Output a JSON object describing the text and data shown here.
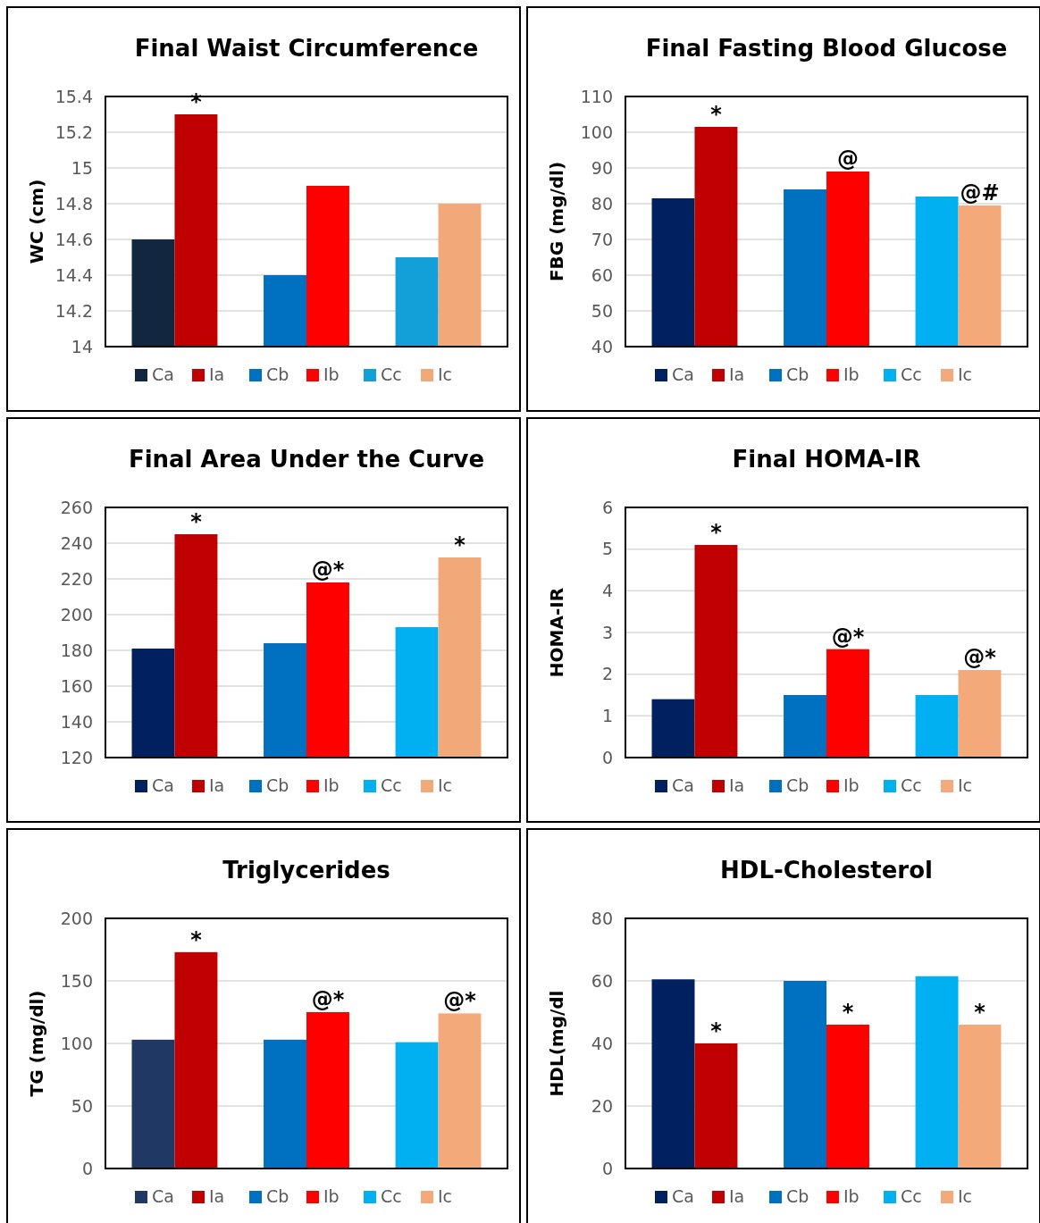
{
  "chart_data": [
    {
      "type": "bar",
      "title": "Final Waist Circumference",
      "ylabel": "WC (cm)",
      "categories": [
        null,
        null,
        null
      ],
      "ylim": [
        14,
        15.4
      ],
      "yticks": [
        14,
        14.2,
        14.4,
        14.6,
        14.8,
        15,
        15.2,
        15.4
      ],
      "grid": "y",
      "legend": "bottom",
      "series": [
        {
          "name": "Ca",
          "color": "#12263f",
          "values": [
            14.6,
            null,
            null
          ]
        },
        {
          "name": "Ia",
          "color": "#c00000",
          "values": [
            15.3,
            null,
            null
          ]
        },
        {
          "name": "Cb",
          "color": "#0070c0",
          "values": [
            null,
            14.4,
            null
          ]
        },
        {
          "name": "Ib",
          "color": "#ff0000",
          "values": [
            null,
            14.9,
            null
          ]
        },
        {
          "name": "Cc",
          "color": "#13a0d8",
          "values": [
            null,
            null,
            14.5
          ]
        },
        {
          "name": "Ic",
          "color": "#f1a97a",
          "values": [
            null,
            null,
            14.8
          ]
        }
      ],
      "annotations": [
        {
          "text": "*",
          "y": 15.3
        }
      ]
    },
    {
      "type": "bar",
      "title": "Final Fasting Blood Glucose",
      "ylabel": "FBG (mg/dl)",
      "categories": [
        null,
        null,
        null
      ],
      "ylim": [
        40,
        110
      ],
      "yticks": [
        40,
        50,
        60,
        70,
        80,
        90,
        100,
        110
      ],
      "grid": "y",
      "legend": "bottom",
      "series": [
        {
          "name": "Ca",
          "color": "#002060",
          "values": [
            81.5,
            null,
            null
          ]
        },
        {
          "name": "Ia",
          "color": "#c00000",
          "values": [
            101.5,
            null,
            null
          ]
        },
        {
          "name": "Cb",
          "color": "#0070c0",
          "values": [
            null,
            84,
            null
          ]
        },
        {
          "name": "Ib",
          "color": "#ff0000",
          "values": [
            null,
            89,
            null
          ]
        },
        {
          "name": "Cc",
          "color": "#00b0f0",
          "values": [
            null,
            null,
            82
          ]
        },
        {
          "name": "Ic",
          "color": "#f4a97a",
          "values": [
            null,
            null,
            79.5
          ]
        }
      ],
      "annotations": [
        {
          "text": "*",
          "y": 101.5
        },
        {
          "text": "@",
          "y": 89
        },
        {
          "text": "@#",
          "y": 79.5
        }
      ]
    },
    {
      "type": "bar",
      "title": "Final Area Under the Curve",
      "categories": [
        null,
        null,
        null
      ],
      "ylim": [
        120,
        260
      ],
      "yticks": [
        120,
        140,
        160,
        180,
        200,
        220,
        240,
        260
      ],
      "grid": "y",
      "legend": "bottom",
      "series": [
        {
          "name": "Ca",
          "color": "#002060",
          "values": [
            181,
            null,
            null
          ]
        },
        {
          "name": "Ia",
          "color": "#c00000",
          "values": [
            245,
            null,
            null
          ]
        },
        {
          "name": "Cb",
          "color": "#0070c0",
          "values": [
            null,
            184,
            null
          ]
        },
        {
          "name": "Ib",
          "color": "#ff0000",
          "values": [
            null,
            218,
            null
          ]
        },
        {
          "name": "Cc",
          "color": "#00b0f0",
          "values": [
            null,
            null,
            193
          ]
        },
        {
          "name": "Ic",
          "color": "#f1a97a",
          "values": [
            null,
            null,
            232
          ]
        }
      ],
      "annotations": [
        {
          "text": "*",
          "y": 245
        },
        {
          "text": "@*",
          "y": 218
        },
        {
          "text": "*",
          "y": 232
        }
      ]
    },
    {
      "type": "bar",
      "title": "Final HOMA-IR",
      "ylabel": "HOMA-IR",
      "categories": [
        null,
        null,
        null
      ],
      "ylim": [
        0,
        6
      ],
      "yticks": [
        0,
        1,
        2,
        3,
        4,
        5,
        6
      ],
      "grid": "y",
      "legend": "bottom",
      "series": [
        {
          "name": "Ca",
          "color": "#002060",
          "values": [
            1.4,
            null,
            null
          ]
        },
        {
          "name": "Ia",
          "color": "#c00000",
          "values": [
            5.1,
            null,
            null
          ]
        },
        {
          "name": "Cb",
          "color": "#0070c0",
          "values": [
            null,
            1.5,
            null
          ]
        },
        {
          "name": "Ib",
          "color": "#ff0000",
          "values": [
            null,
            2.6,
            null
          ]
        },
        {
          "name": "Cc",
          "color": "#00b0f0",
          "values": [
            null,
            null,
            1.5
          ]
        },
        {
          "name": "Ic",
          "color": "#f4a97a",
          "values": [
            null,
            null,
            2.1
          ]
        }
      ],
      "annotations": [
        {
          "text": "*",
          "y": 5.1
        },
        {
          "text": "@*",
          "y": 2.6
        },
        {
          "text": "@*",
          "y": 2.1
        }
      ]
    },
    {
      "type": "bar",
      "title": "Triglycerides",
      "ylabel": "TG (mg/dl)",
      "categories": [
        null,
        null,
        null
      ],
      "ylim": [
        0,
        200
      ],
      "yticks": [
        0,
        50,
        100,
        150,
        200
      ],
      "grid": "y",
      "legend": "bottom",
      "series": [
        {
          "name": "Ca",
          "color": "#203864",
          "values": [
            103,
            null,
            null
          ]
        },
        {
          "name": "Ia",
          "color": "#c00000",
          "values": [
            173,
            null,
            null
          ]
        },
        {
          "name": "Cb",
          "color": "#0070c0",
          "values": [
            null,
            103,
            null
          ]
        },
        {
          "name": "Ib",
          "color": "#ff0000",
          "values": [
            null,
            125,
            null
          ]
        },
        {
          "name": "Cc",
          "color": "#00b0f0",
          "values": [
            null,
            null,
            101
          ]
        },
        {
          "name": "Ic",
          "color": "#f4a97a",
          "values": [
            null,
            null,
            124
          ]
        }
      ],
      "annotations": [
        {
          "text": "*",
          "y": 173
        },
        {
          "text": "@*",
          "y": 125
        },
        {
          "text": "@*",
          "y": 124
        }
      ]
    },
    {
      "type": "bar",
      "title": "HDL-Cholesterol",
      "ylabel": "HDL(mg/dl",
      "categories": [
        null,
        null,
        null
      ],
      "ylim": [
        0,
        80
      ],
      "yticks": [
        0,
        20,
        40,
        60,
        80
      ],
      "grid": "y",
      "legend": "bottom",
      "series": [
        {
          "name": "Ca",
          "color": "#002060",
          "values": [
            60.5,
            null,
            null
          ]
        },
        {
          "name": "Ia",
          "color": "#c00000",
          "values": [
            40,
            null,
            null
          ]
        },
        {
          "name": "Cb",
          "color": "#0070c0",
          "values": [
            null,
            60,
            null
          ]
        },
        {
          "name": "Ib",
          "color": "#ff0000",
          "values": [
            null,
            46,
            null
          ]
        },
        {
          "name": "Cc",
          "color": "#00b0f0",
          "values": [
            null,
            null,
            61.5
          ]
        },
        {
          "name": "Ic",
          "color": "#f4a97a",
          "values": [
            null,
            null,
            46
          ]
        }
      ],
      "annotations": [
        {
          "text": "*",
          "y": 40
        },
        {
          "text": "*",
          "y": 46
        },
        {
          "text": "*",
          "y": 46
        }
      ]
    }
  ]
}
